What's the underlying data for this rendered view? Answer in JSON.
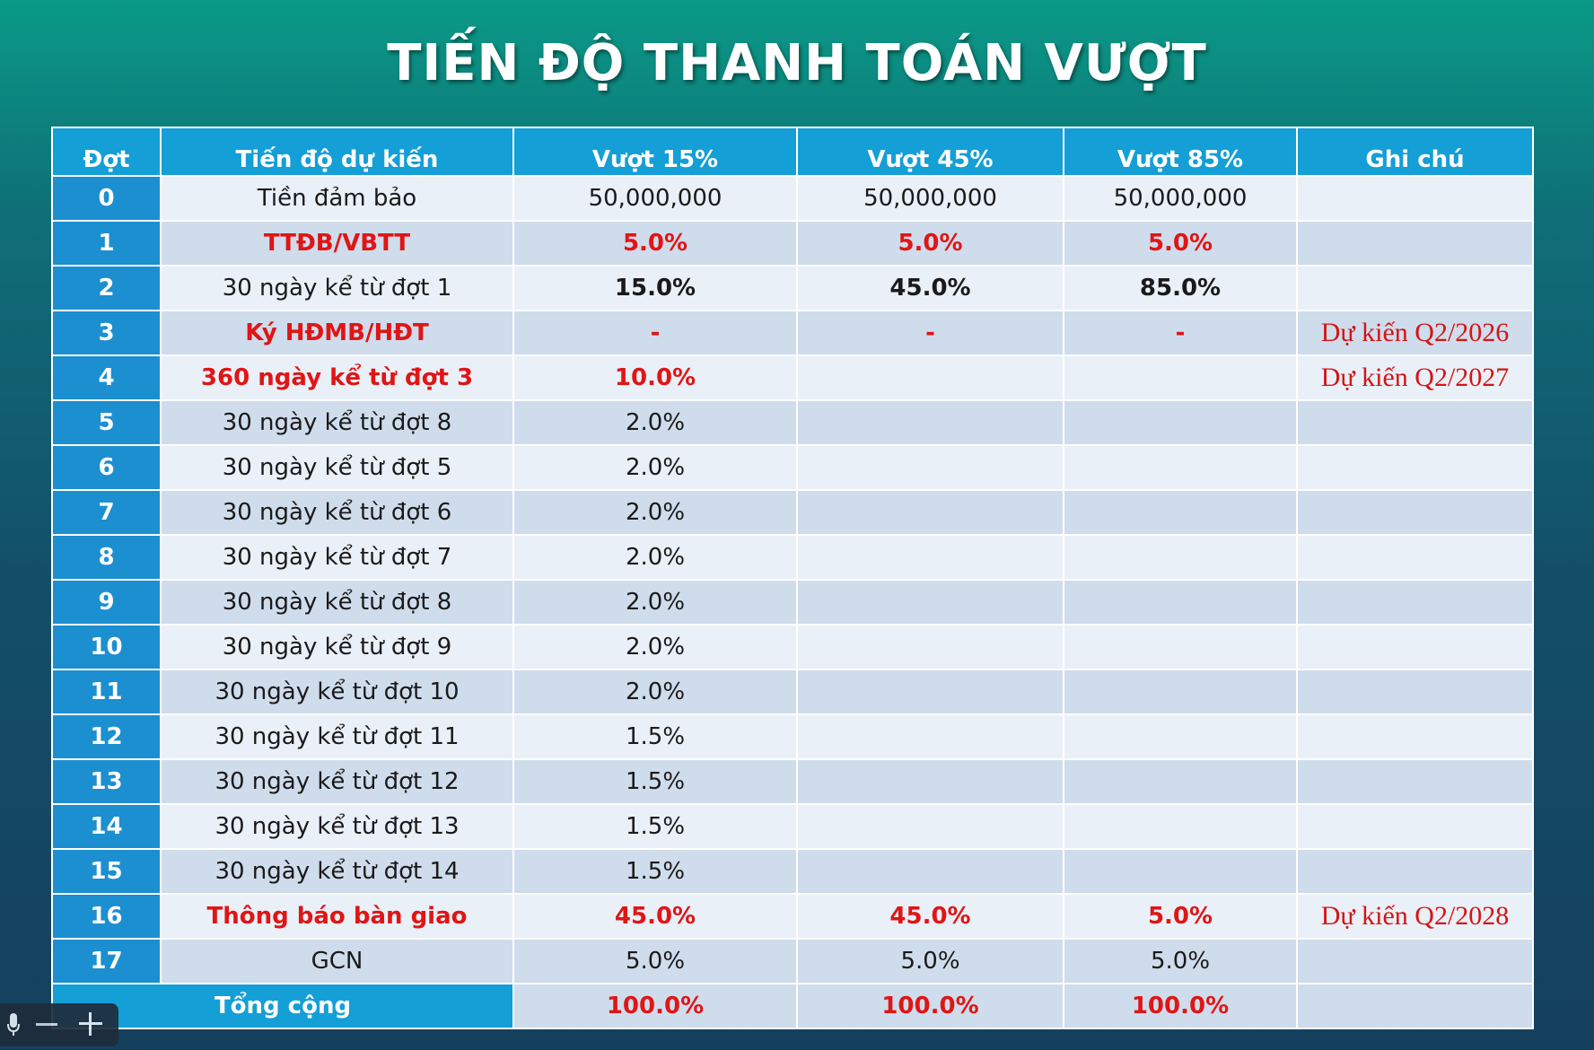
{
  "title": "TIẾN ĐỘ THANH TOÁN VƯỢT",
  "table": {
    "headers": [
      "Đợt",
      "Tiến độ dự kiến",
      "Vượt 15%",
      "Vượt 45%",
      "Vượt 85%",
      "Ghi chú"
    ],
    "rows": [
      {
        "dot": "0",
        "tien_do": "Tiền đảm bảo",
        "v15": "50,000,000",
        "v45": "50,000,000",
        "v85": "50,000,000",
        "ghi_chu": ""
      },
      {
        "dot": "1",
        "tien_do": "TTĐB/VBTT",
        "v15": "5.0%",
        "v45": "5.0%",
        "v85": "5.0%",
        "ghi_chu": ""
      },
      {
        "dot": "2",
        "tien_do": "30 ngày kể từ đợt 1",
        "v15": "15.0%",
        "v45": "45.0%",
        "v85": "85.0%",
        "ghi_chu": ""
      },
      {
        "dot": "3",
        "tien_do": "Ký HĐMB/HĐT",
        "v15": "-",
        "v45": "-",
        "v85": "-",
        "ghi_chu": "Dự kiến Q2/2026"
      },
      {
        "dot": "4",
        "tien_do": "360 ngày kể từ đợt 3",
        "v15": "10.0%",
        "v45": "",
        "v85": "",
        "ghi_chu": "Dự kiến Q2/2027"
      },
      {
        "dot": "5",
        "tien_do": "30 ngày kể từ đợt 8",
        "v15": "2.0%",
        "v45": "",
        "v85": "",
        "ghi_chu": ""
      },
      {
        "dot": "6",
        "tien_do": "30 ngày kể từ đợt 5",
        "v15": "2.0%",
        "v45": "",
        "v85": "",
        "ghi_chu": ""
      },
      {
        "dot": "7",
        "tien_do": "30 ngày kể từ đợt 6",
        "v15": "2.0%",
        "v45": "",
        "v85": "",
        "ghi_chu": ""
      },
      {
        "dot": "8",
        "tien_do": "30 ngày kể từ đợt 7",
        "v15": "2.0%",
        "v45": "",
        "v85": "",
        "ghi_chu": ""
      },
      {
        "dot": "9",
        "tien_do": "30 ngày kể từ đợt 8",
        "v15": "2.0%",
        "v45": "",
        "v85": "",
        "ghi_chu": ""
      },
      {
        "dot": "10",
        "tien_do": "30 ngày kể từ đợt 9",
        "v15": "2.0%",
        "v45": "",
        "v85": "",
        "ghi_chu": ""
      },
      {
        "dot": "11",
        "tien_do": "30 ngày kể từ đợt 10",
        "v15": "2.0%",
        "v45": "",
        "v85": "",
        "ghi_chu": ""
      },
      {
        "dot": "12",
        "tien_do": "30 ngày kể từ đợt 11",
        "v15": "1.5%",
        "v45": "",
        "v85": "",
        "ghi_chu": ""
      },
      {
        "dot": "13",
        "tien_do": "30 ngày kể từ đợt 12",
        "v15": "1.5%",
        "v45": "",
        "v85": "",
        "ghi_chu": ""
      },
      {
        "dot": "14",
        "tien_do": "30 ngày kể từ đợt 13",
        "v15": "1.5%",
        "v45": "",
        "v85": "",
        "ghi_chu": ""
      },
      {
        "dot": "15",
        "tien_do": "30 ngày kể từ đợt 14",
        "v15": "1.5%",
        "v45": "",
        "v85": "",
        "ghi_chu": ""
      },
      {
        "dot": "16",
        "tien_do": "Thông báo bàn giao",
        "v15": "45.0%",
        "v45": "45.0%",
        "v85": "5.0%",
        "ghi_chu": "Dự kiến Q2/2028"
      },
      {
        "dot": "17",
        "tien_do": "GCN",
        "v15": "5.0%",
        "v45": "5.0%",
        "v85": "5.0%",
        "ghi_chu": ""
      }
    ],
    "total": {
      "label": "Tổng cộng",
      "v15": "100.0%",
      "v45": "100.0%",
      "v85": "100.0%",
      "ghi_chu": ""
    }
  },
  "zoom_controls": {
    "icons": [
      "microphone-icon",
      "minus-icon",
      "plus-icon"
    ]
  },
  "colors": {
    "header_blue": "#149fd6",
    "number_blue": "#1c8fd0",
    "accent_red": "#e01515"
  }
}
